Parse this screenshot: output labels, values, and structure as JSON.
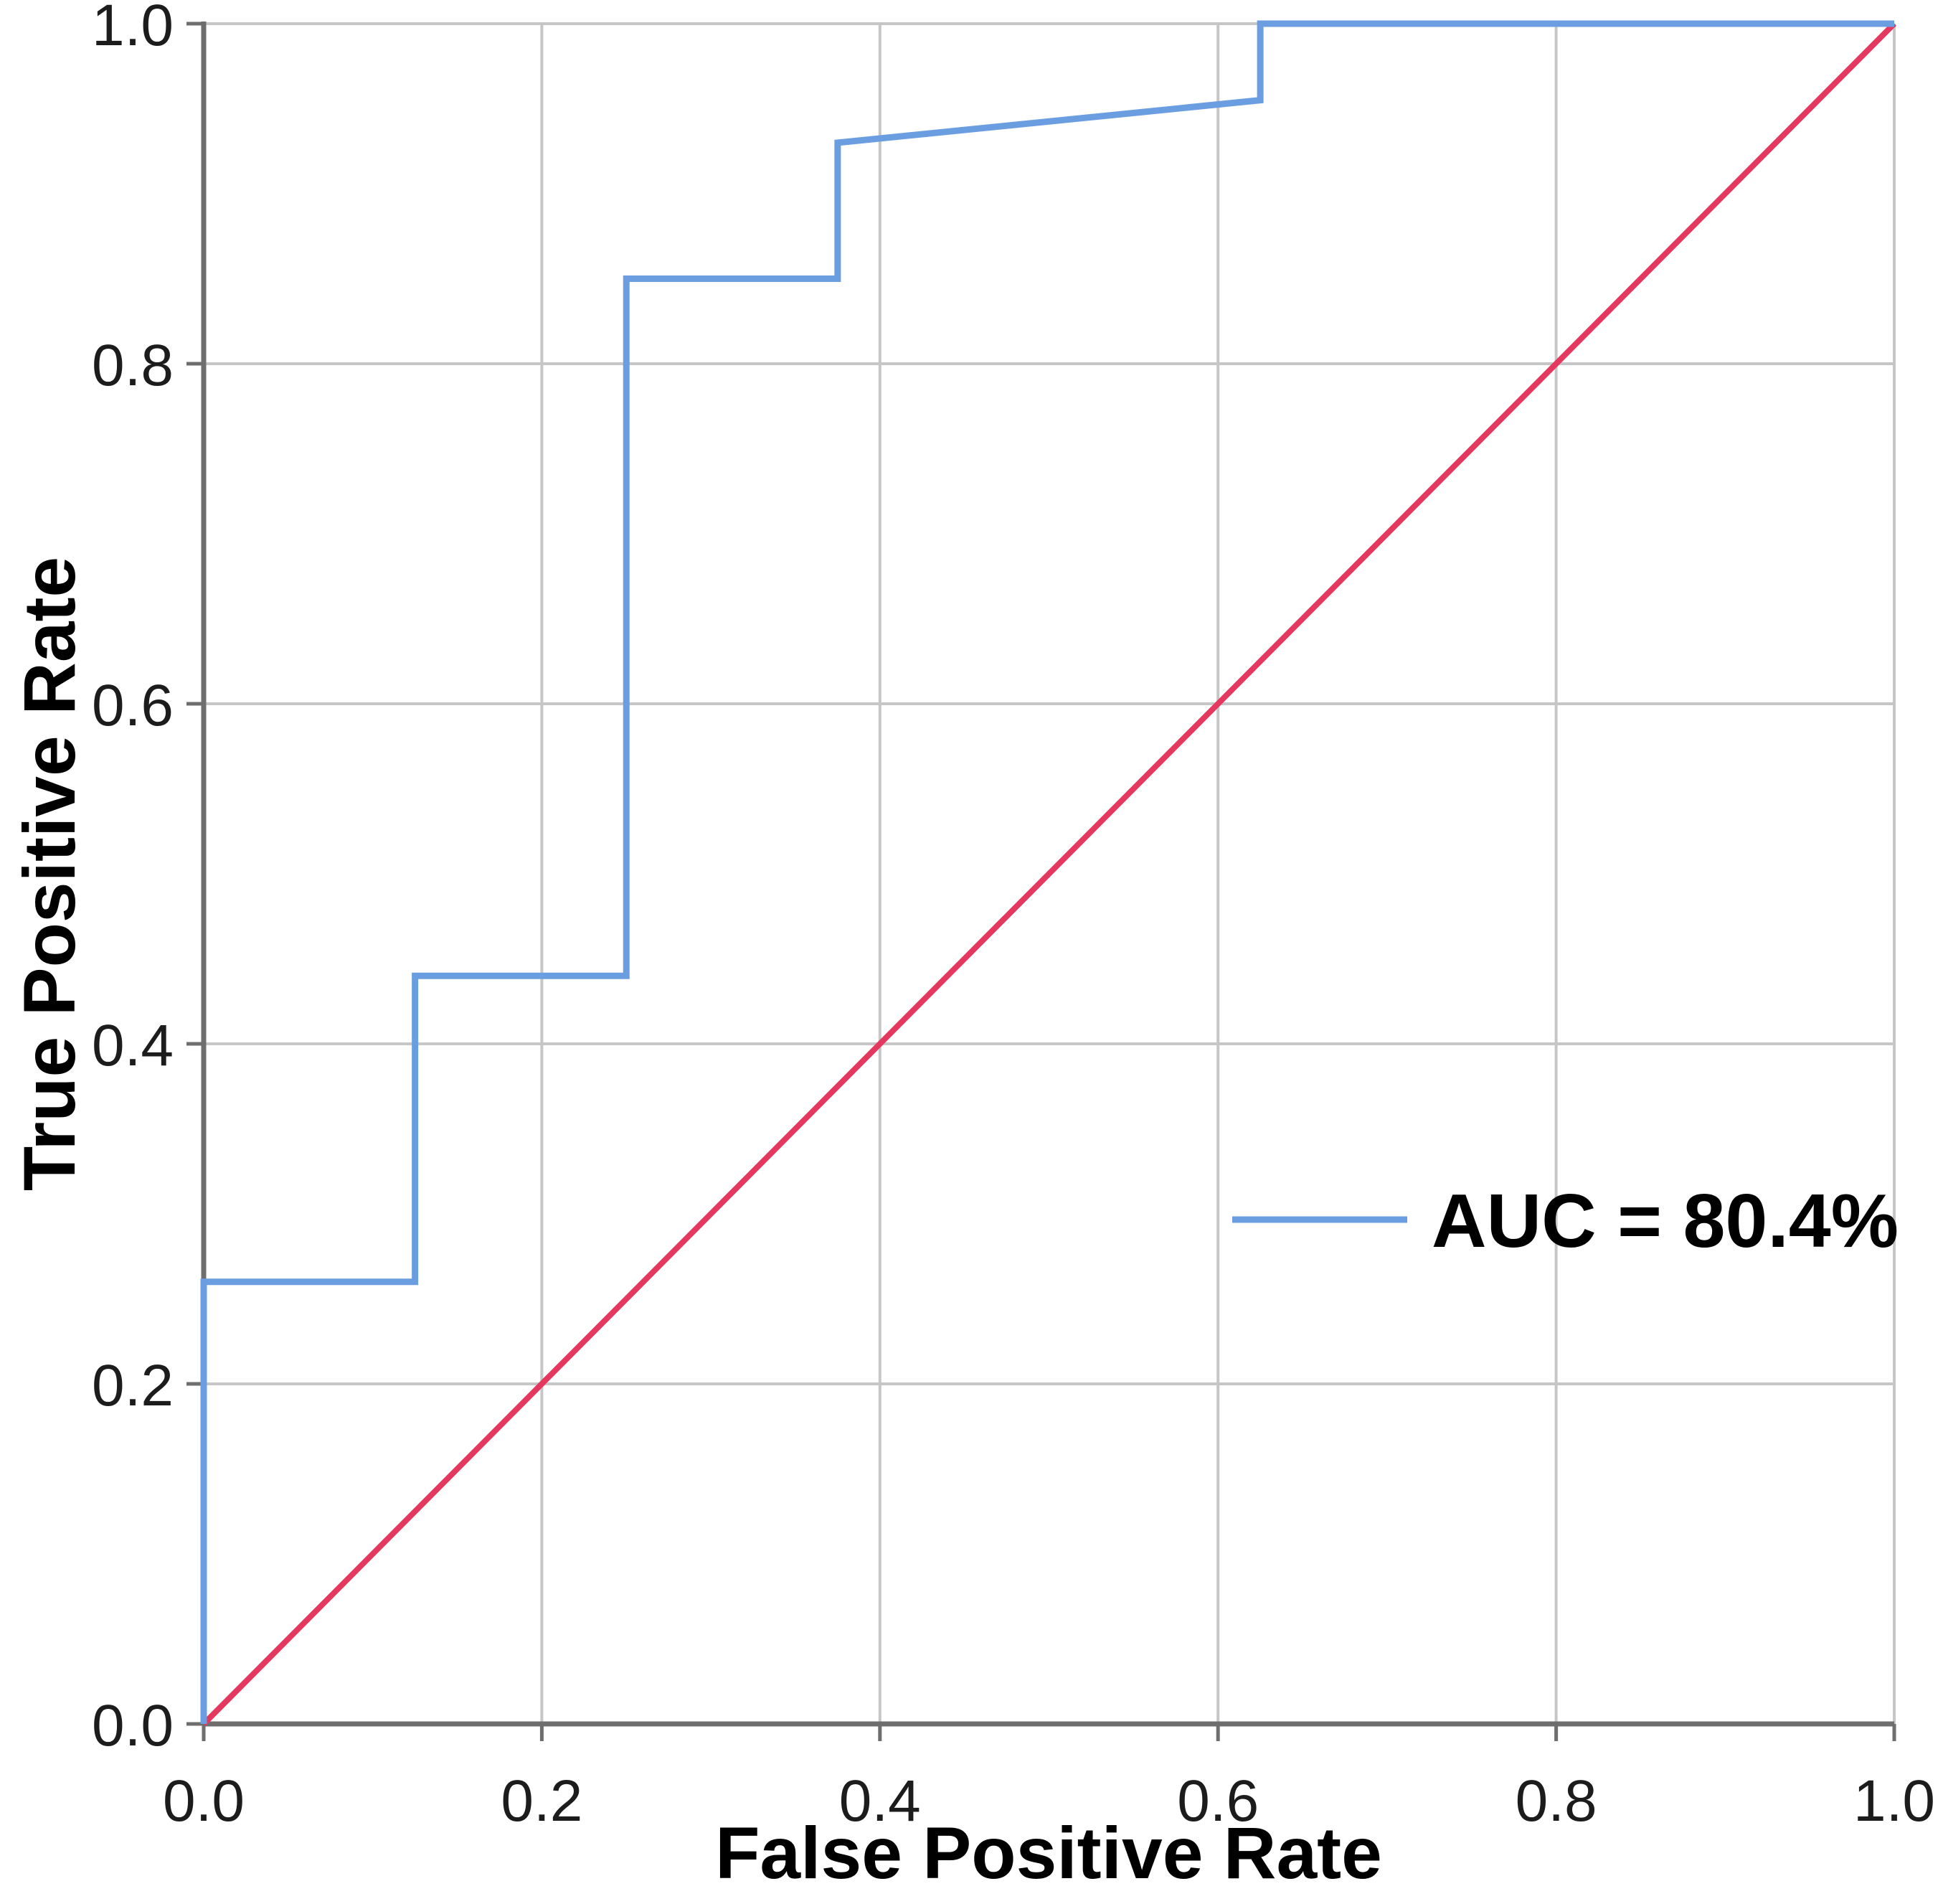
{
  "chart_data": {
    "type": "line",
    "subtype": "roc-curve",
    "title": "",
    "xlabel": "False Positive Rate",
    "ylabel": "True Positive Rate",
    "xlim": [
      0,
      1
    ],
    "ylim": [
      0,
      1
    ],
    "grid": true,
    "x_ticks": {
      "values": [
        0.0,
        0.2,
        0.4,
        0.6,
        0.8,
        1.0
      ],
      "labels": [
        "0.0",
        "0.2",
        "0.4",
        "0.6",
        "0.8",
        "1.0"
      ]
    },
    "y_ticks": {
      "values": [
        0.0,
        0.2,
        0.4,
        0.6,
        0.8,
        1.0
      ],
      "labels": [
        "0.0",
        "0.2",
        "0.4",
        "0.6",
        "0.8",
        "1.0"
      ]
    },
    "series": [
      {
        "name": "roc-curve",
        "color_key": "curve",
        "stroke_width": 9,
        "points": [
          [
            0,
            0
          ],
          [
            0,
            0.26
          ],
          [
            0.125,
            0.26
          ],
          [
            0.125,
            0.44
          ],
          [
            0.25,
            0.44
          ],
          [
            0.25,
            0.85
          ],
          [
            0.375,
            0.85
          ],
          [
            0.375,
            0.93
          ],
          [
            0.625,
            0.955
          ],
          [
            0.625,
            1.0
          ],
          [
            1.0,
            1.0
          ]
        ]
      },
      {
        "name": "reference-diagonal",
        "color_key": "reference",
        "stroke_width": 8,
        "points": [
          [
            0,
            0
          ],
          [
            1.0,
            1.0
          ]
        ]
      }
    ],
    "legend": {
      "label": "AUC = 80.4%",
      "sample_color_key": "curve",
      "position": "right-middle"
    },
    "colors": {
      "curve": "#6B9EE0",
      "reference": "#E5385F",
      "grid": "#C6C6C6",
      "axis": "#6E6E6E",
      "tick_text": "#1C1C1C",
      "title_text": "#000000",
      "background": "#FFFFFF"
    }
  }
}
